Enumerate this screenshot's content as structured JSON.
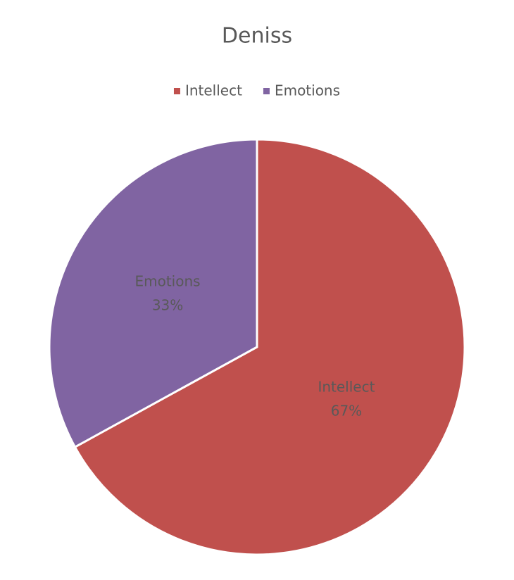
{
  "chart_data": {
    "type": "pie",
    "title": "Deniss",
    "categories": [
      "Intellect",
      "Emotions"
    ],
    "values": [
      67,
      33
    ],
    "value_labels": [
      "67%",
      "33%"
    ],
    "colors": [
      "#c0504d",
      "#8064a2"
    ],
    "legend": "top"
  }
}
